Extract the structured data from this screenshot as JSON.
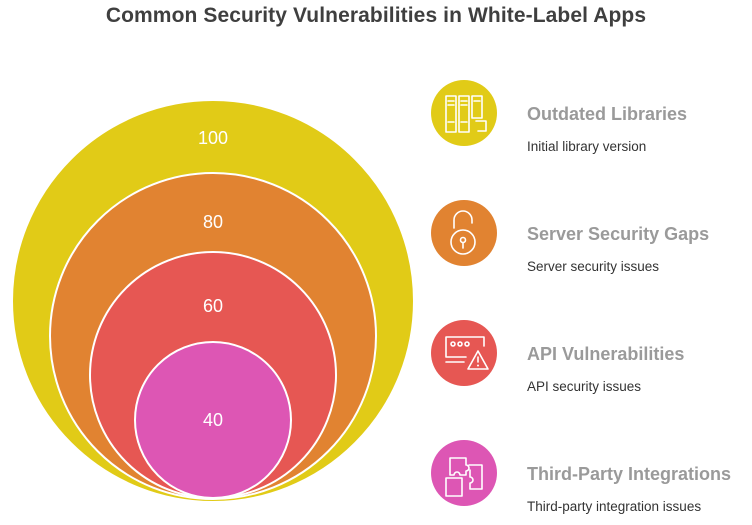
{
  "title": "Common Security Vulnerabilities in White-Label Apps",
  "colors": {
    "yellow": "#E1CB17",
    "orange": "#E18331",
    "red": "#E65753",
    "pink": "#DD56B4",
    "title_text": "#3f3f3f",
    "legend_title_text": "#9a9a9a"
  },
  "rings": [
    {
      "value": "100",
      "color": "#E1CB17"
    },
    {
      "value": "80",
      "color": "#E18331"
    },
    {
      "value": "60",
      "color": "#E65753"
    },
    {
      "value": "40",
      "color": "#DD56B4"
    }
  ],
  "legend": [
    {
      "title": "Outdated Libraries",
      "description": "Initial library version",
      "icon": "library-icon",
      "color": "#E1CB17"
    },
    {
      "title": "Server Security Gaps",
      "description": "Server security issues",
      "icon": "padlock-icon",
      "color": "#E18331"
    },
    {
      "title": "API Vulnerabilities",
      "description": "API security issues",
      "icon": "api-warning-icon",
      "color": "#E65753"
    },
    {
      "title": "Third-Party Integrations",
      "description": "Third-party integration issues",
      "icon": "puzzle-integration-icon",
      "color": "#DD56B4"
    }
  ]
}
